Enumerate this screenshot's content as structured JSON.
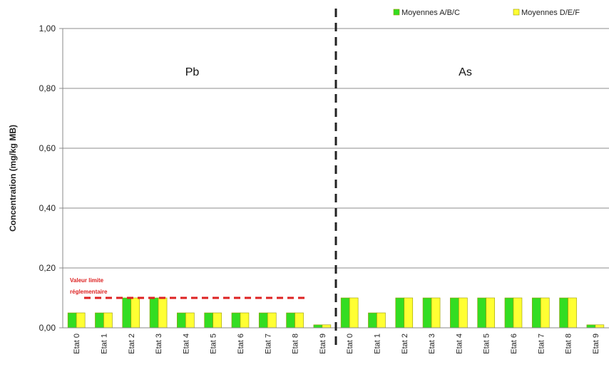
{
  "chart_data": {
    "type": "bar",
    "ylabel": "Concentration (mg/kg MB)",
    "ylim": [
      0,
      1.0
    ],
    "yticks": [
      "0,00",
      "0,20",
      "0,40",
      "0,60",
      "0,80",
      "1,00"
    ],
    "legend": {
      "placement": "top-right",
      "entries": [
        "Moyennes A/B/C",
        "Moyennes D/E/F"
      ]
    },
    "colors": {
      "series_1": "#33dd22",
      "series_2": "#ffff33",
      "bar_stroke": "#999900",
      "limit_line": "#dd2222",
      "separator": "#222222",
      "gridline": "#8c8c8c"
    },
    "panels": [
      {
        "label": "Pb",
        "categories": [
          "Etat 0",
          "Etat 1",
          "Etat 2",
          "Etat 3",
          "Etat 4",
          "Etat 5",
          "Etat 6",
          "Etat 7",
          "Etat 8",
          "Etat 9"
        ],
        "series": [
          {
            "name": "Moyennes A/B/C",
            "values": [
              0.05,
              0.05,
              0.1,
              0.1,
              0.05,
              0.05,
              0.05,
              0.05,
              0.05,
              0.01
            ]
          },
          {
            "name": "Moyennes D/E/F",
            "values": [
              0.05,
              0.05,
              0.1,
              0.1,
              0.05,
              0.05,
              0.05,
              0.05,
              0.05,
              0.01
            ]
          }
        ],
        "limit": {
          "value": 0.1,
          "label_line1": "Valeur limite",
          "label_line2": "réglementaire"
        }
      },
      {
        "label": "As",
        "categories": [
          "Etat 0",
          "Etat 1",
          "Etat 2",
          "Etat 3",
          "Etat 4",
          "Etat 5",
          "Etat 6",
          "Etat 7",
          "Etat 8",
          "Etat 9"
        ],
        "series": [
          {
            "name": "Moyennes A/B/C",
            "values": [
              0.1,
              0.05,
              0.1,
              0.1,
              0.1,
              0.1,
              0.1,
              0.1,
              0.1,
              0.01
            ]
          },
          {
            "name": "Moyennes D/E/F",
            "values": [
              0.1,
              0.05,
              0.1,
              0.1,
              0.1,
              0.1,
              0.1,
              0.1,
              0.1,
              0.01
            ]
          }
        ]
      }
    ]
  }
}
